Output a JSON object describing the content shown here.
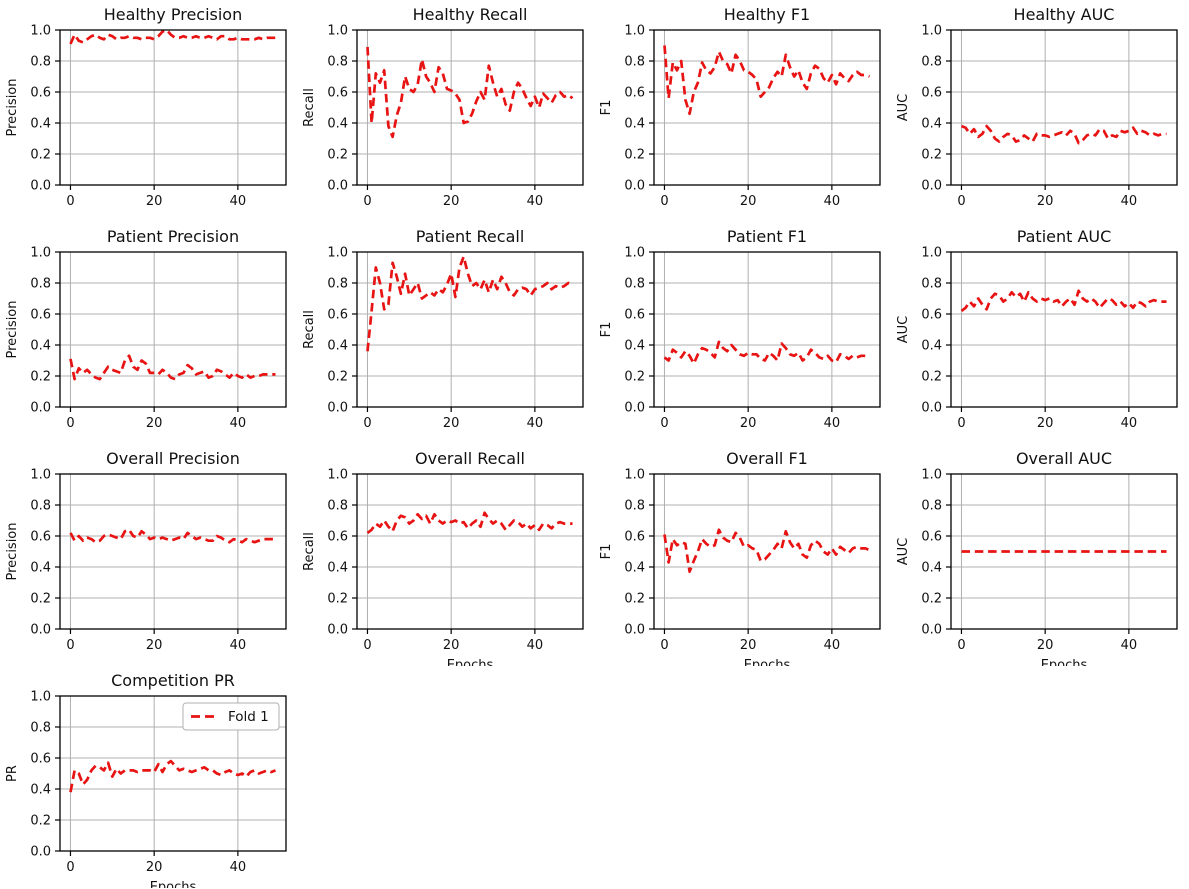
{
  "figure": {
    "background": "#ffffff",
    "rows": 4,
    "cols": 4
  },
  "defaults": {
    "type": "line",
    "line_color": "#e81313",
    "line_style": "dashed",
    "grid": true,
    "grid_color": "#b0b0b0",
    "spine_color": "#000000",
    "text_color": "#111111",
    "ylim": [
      0.0,
      1.0
    ],
    "xlim": [
      -2.5,
      51.5
    ],
    "yticks": [
      "0.0",
      "0.2",
      "0.4",
      "0.6",
      "0.8",
      "1.0"
    ],
    "xticks": [
      0,
      20,
      40
    ],
    "epochs": 50,
    "series_name": "Fold 1"
  },
  "chart_data": [
    {
      "id": "healthy-precision",
      "type": "line",
      "title": "Healthy Precision",
      "ylabel": "Precision",
      "xlabel": "",
      "values": [
        0.91,
        0.97,
        0.93,
        0.92,
        0.94,
        0.96,
        0.97,
        0.95,
        0.94,
        0.97,
        0.96,
        0.94,
        0.95,
        0.95,
        0.96,
        0.95,
        0.95,
        0.94,
        0.95,
        0.95,
        0.94,
        0.96,
        0.99,
        1.0,
        0.97,
        0.95,
        0.95,
        0.96,
        0.95,
        0.95,
        0.96,
        0.95,
        0.95,
        0.96,
        0.95,
        0.94,
        0.96,
        0.96,
        0.94,
        0.94,
        0.95,
        0.94,
        0.94,
        0.94,
        0.94,
        0.95,
        0.94,
        0.95,
        0.95,
        0.95
      ]
    },
    {
      "id": "healthy-recall",
      "type": "line",
      "title": "Healthy Recall",
      "ylabel": "Recall",
      "xlabel": "",
      "values": [
        0.89,
        0.4,
        0.72,
        0.66,
        0.74,
        0.38,
        0.31,
        0.45,
        0.53,
        0.7,
        0.62,
        0.6,
        0.65,
        0.81,
        0.7,
        0.66,
        0.6,
        0.76,
        0.72,
        0.62,
        0.61,
        0.59,
        0.55,
        0.4,
        0.41,
        0.46,
        0.54,
        0.6,
        0.55,
        0.77,
        0.66,
        0.57,
        0.62,
        0.52,
        0.48,
        0.6,
        0.66,
        0.62,
        0.56,
        0.51,
        0.57,
        0.5,
        0.59,
        0.56,
        0.53,
        0.58,
        0.6,
        0.57,
        0.58,
        0.56
      ]
    },
    {
      "id": "healthy-f1",
      "type": "line",
      "title": "Healthy F1",
      "ylabel": "F1",
      "xlabel": "",
      "values": [
        0.9,
        0.56,
        0.79,
        0.74,
        0.8,
        0.55,
        0.46,
        0.6,
        0.66,
        0.79,
        0.74,
        0.72,
        0.76,
        0.86,
        0.8,
        0.78,
        0.72,
        0.84,
        0.8,
        0.74,
        0.73,
        0.71,
        0.68,
        0.57,
        0.6,
        0.63,
        0.69,
        0.73,
        0.7,
        0.84,
        0.76,
        0.7,
        0.74,
        0.66,
        0.62,
        0.72,
        0.77,
        0.75,
        0.69,
        0.66,
        0.71,
        0.65,
        0.72,
        0.69,
        0.67,
        0.71,
        0.73,
        0.71,
        0.71,
        0.7
      ]
    },
    {
      "id": "healthy-auc",
      "type": "line",
      "title": "Healthy AUC",
      "ylabel": "AUC",
      "xlabel": "",
      "values": [
        0.38,
        0.37,
        0.33,
        0.36,
        0.31,
        0.33,
        0.38,
        0.35,
        0.3,
        0.28,
        0.31,
        0.33,
        0.32,
        0.28,
        0.29,
        0.32,
        0.3,
        0.28,
        0.33,
        0.32,
        0.32,
        0.31,
        0.32,
        0.33,
        0.34,
        0.32,
        0.35,
        0.33,
        0.27,
        0.29,
        0.32,
        0.33,
        0.32,
        0.36,
        0.35,
        0.3,
        0.32,
        0.31,
        0.35,
        0.34,
        0.35,
        0.37,
        0.33,
        0.35,
        0.34,
        0.32,
        0.33,
        0.32,
        0.33,
        0.33
      ]
    },
    {
      "id": "patient-precision",
      "type": "line",
      "title": "Patient Precision",
      "ylabel": "Precision",
      "xlabel": "",
      "values": [
        0.31,
        0.18,
        0.25,
        0.22,
        0.24,
        0.21,
        0.19,
        0.18,
        0.22,
        0.26,
        0.24,
        0.23,
        0.22,
        0.3,
        0.33,
        0.26,
        0.24,
        0.3,
        0.28,
        0.22,
        0.22,
        0.21,
        0.24,
        0.22,
        0.19,
        0.18,
        0.21,
        0.22,
        0.27,
        0.25,
        0.21,
        0.22,
        0.23,
        0.19,
        0.2,
        0.24,
        0.23,
        0.21,
        0.19,
        0.22,
        0.2,
        0.19,
        0.21,
        0.19,
        0.2,
        0.2,
        0.21,
        0.21,
        0.21,
        0.21
      ]
    },
    {
      "id": "patient-recall",
      "type": "line",
      "title": "Patient Recall",
      "ylabel": "Recall",
      "xlabel": "",
      "values": [
        0.36,
        0.62,
        0.9,
        0.8,
        0.63,
        0.66,
        0.93,
        0.84,
        0.73,
        0.86,
        0.72,
        0.76,
        0.8,
        0.7,
        0.72,
        0.74,
        0.72,
        0.76,
        0.74,
        0.79,
        0.86,
        0.71,
        0.9,
        0.97,
        0.86,
        0.78,
        0.8,
        0.76,
        0.82,
        0.74,
        0.82,
        0.76,
        0.84,
        0.8,
        0.74,
        0.72,
        0.76,
        0.77,
        0.76,
        0.72,
        0.76,
        0.77,
        0.78,
        0.8,
        0.76,
        0.78,
        0.77,
        0.78,
        0.8,
        0.79
      ]
    },
    {
      "id": "patient-f1",
      "type": "line",
      "title": "Patient F1",
      "ylabel": "F1",
      "xlabel": "",
      "values": [
        0.32,
        0.3,
        0.37,
        0.35,
        0.32,
        0.36,
        0.33,
        0.28,
        0.34,
        0.38,
        0.37,
        0.35,
        0.32,
        0.42,
        0.38,
        0.36,
        0.4,
        0.37,
        0.34,
        0.33,
        0.35,
        0.34,
        0.34,
        0.31,
        0.3,
        0.35,
        0.33,
        0.3,
        0.41,
        0.38,
        0.34,
        0.33,
        0.35,
        0.3,
        0.32,
        0.37,
        0.35,
        0.32,
        0.31,
        0.33,
        0.3,
        0.29,
        0.34,
        0.33,
        0.31,
        0.33,
        0.32,
        0.33,
        0.33,
        0.33
      ]
    },
    {
      "id": "patient-auc",
      "type": "line",
      "title": "Patient AUC",
      "ylabel": "AUC",
      "xlabel": "",
      "values": [
        0.62,
        0.64,
        0.68,
        0.65,
        0.7,
        0.66,
        0.63,
        0.7,
        0.73,
        0.72,
        0.68,
        0.7,
        0.74,
        0.71,
        0.73,
        0.68,
        0.74,
        0.7,
        0.68,
        0.7,
        0.69,
        0.7,
        0.68,
        0.69,
        0.65,
        0.68,
        0.7,
        0.66,
        0.75,
        0.7,
        0.68,
        0.7,
        0.68,
        0.64,
        0.67,
        0.7,
        0.69,
        0.66,
        0.68,
        0.65,
        0.67,
        0.64,
        0.68,
        0.67,
        0.65,
        0.68,
        0.69,
        0.68,
        0.68,
        0.68
      ]
    },
    {
      "id": "overall-precision",
      "type": "line",
      "title": "Overall Precision",
      "ylabel": "Precision",
      "xlabel": "",
      "values": [
        0.62,
        0.57,
        0.6,
        0.57,
        0.59,
        0.58,
        0.56,
        0.57,
        0.6,
        0.61,
        0.6,
        0.59,
        0.58,
        0.63,
        0.64,
        0.6,
        0.59,
        0.63,
        0.61,
        0.58,
        0.59,
        0.58,
        0.59,
        0.58,
        0.57,
        0.58,
        0.59,
        0.58,
        0.62,
        0.6,
        0.58,
        0.59,
        0.58,
        0.57,
        0.57,
        0.6,
        0.59,
        0.57,
        0.56,
        0.58,
        0.57,
        0.56,
        0.58,
        0.57,
        0.56,
        0.57,
        0.58,
        0.58,
        0.58,
        0.58
      ]
    },
    {
      "id": "overall-recall",
      "type": "line",
      "title": "Overall Recall",
      "ylabel": "Recall",
      "xlabel": "Epochs",
      "values": [
        0.62,
        0.64,
        0.68,
        0.66,
        0.7,
        0.66,
        0.63,
        0.7,
        0.73,
        0.72,
        0.68,
        0.7,
        0.74,
        0.71,
        0.73,
        0.68,
        0.74,
        0.7,
        0.68,
        0.7,
        0.69,
        0.7,
        0.68,
        0.69,
        0.65,
        0.68,
        0.7,
        0.66,
        0.75,
        0.71,
        0.68,
        0.7,
        0.68,
        0.64,
        0.67,
        0.7,
        0.69,
        0.66,
        0.68,
        0.65,
        0.67,
        0.64,
        0.68,
        0.67,
        0.65,
        0.68,
        0.69,
        0.68,
        0.68,
        0.68
      ]
    },
    {
      "id": "overall-f1",
      "type": "line",
      "title": "Overall F1",
      "ylabel": "F1",
      "xlabel": "Epochs",
      "values": [
        0.61,
        0.43,
        0.58,
        0.54,
        0.56,
        0.55,
        0.37,
        0.44,
        0.5,
        0.58,
        0.55,
        0.53,
        0.54,
        0.64,
        0.59,
        0.57,
        0.56,
        0.62,
        0.59,
        0.53,
        0.54,
        0.52,
        0.51,
        0.44,
        0.45,
        0.48,
        0.51,
        0.55,
        0.52,
        0.63,
        0.56,
        0.52,
        0.55,
        0.48,
        0.46,
        0.54,
        0.57,
        0.55,
        0.5,
        0.48,
        0.52,
        0.48,
        0.53,
        0.51,
        0.49,
        0.52,
        0.53,
        0.52,
        0.52,
        0.51
      ]
    },
    {
      "id": "overall-auc",
      "type": "line",
      "title": "Overall AUC",
      "ylabel": "AUC",
      "xlabel": "Epochs",
      "values": [
        0.5,
        0.5,
        0.5,
        0.5,
        0.5,
        0.5,
        0.5,
        0.5,
        0.5,
        0.5,
        0.5,
        0.5,
        0.5,
        0.5,
        0.5,
        0.5,
        0.5,
        0.5,
        0.5,
        0.5,
        0.5,
        0.5,
        0.5,
        0.5,
        0.5,
        0.5,
        0.5,
        0.5,
        0.5,
        0.5,
        0.5,
        0.5,
        0.5,
        0.5,
        0.5,
        0.5,
        0.5,
        0.5,
        0.5,
        0.5,
        0.5,
        0.5,
        0.5,
        0.5,
        0.5,
        0.5,
        0.5,
        0.5,
        0.5,
        0.5
      ]
    },
    {
      "id": "competition-pr",
      "type": "line",
      "title": "Competition PR",
      "ylabel": "PR",
      "xlabel": "Epochs",
      "legend": {
        "position": "upper right",
        "entries": [
          {
            "label": "Fold 1"
          }
        ]
      },
      "values": [
        0.38,
        0.52,
        0.5,
        0.43,
        0.46,
        0.52,
        0.55,
        0.54,
        0.52,
        0.57,
        0.48,
        0.53,
        0.5,
        0.52,
        0.52,
        0.52,
        0.51,
        0.52,
        0.52,
        0.52,
        0.51,
        0.56,
        0.51,
        0.56,
        0.58,
        0.55,
        0.52,
        0.53,
        0.52,
        0.51,
        0.52,
        0.53,
        0.54,
        0.52,
        0.52,
        0.5,
        0.49,
        0.51,
        0.52,
        0.5,
        0.49,
        0.5,
        0.48,
        0.51,
        0.52,
        0.5,
        0.51,
        0.52,
        0.51,
        0.52
      ]
    }
  ]
}
